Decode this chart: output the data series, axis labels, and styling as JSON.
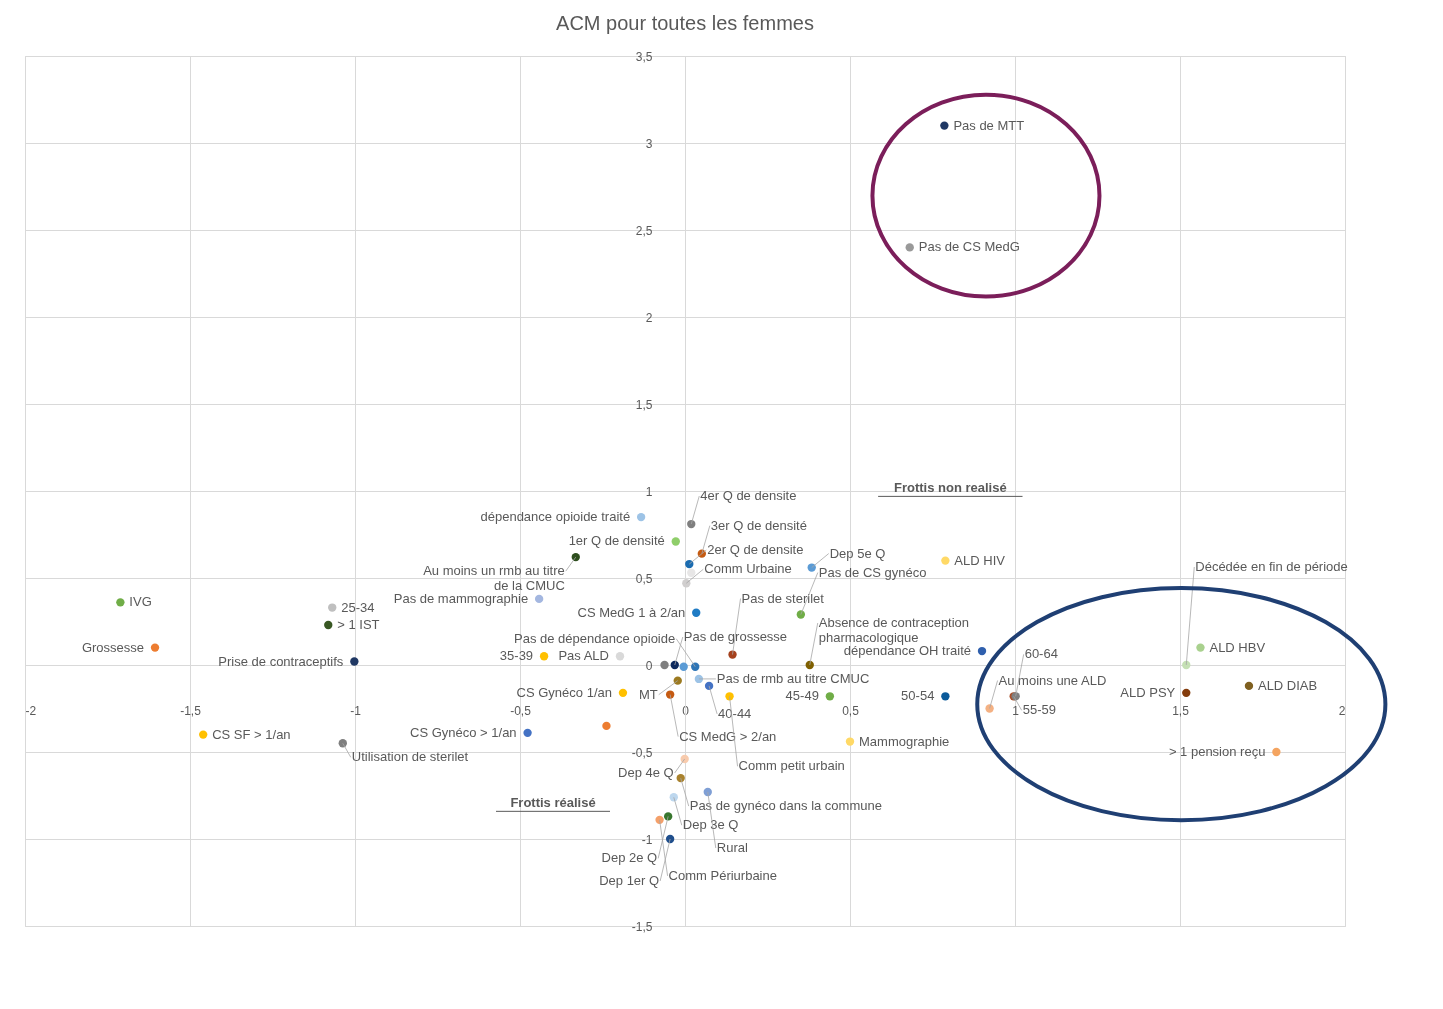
{
  "chart_data": {
    "type": "scatter",
    "title": "ACM pour toutes les femmes",
    "x": [
      0.786,
      0.681,
      -0.133,
      0.019,
      -0.028,
      0.051,
      -0.331,
      0.013,
      0.019,
      0.004,
      0.384,
      0.789,
      -0.442,
      0.034,
      0.351,
      -1.711,
      -1.069,
      -1.081,
      -1.606,
      -1.002,
      -0.427,
      -0.197,
      0.144,
      0.378,
      0.9,
      1.562,
      1.519,
      1.709,
      1.519,
      0.789,
      0.996,
      1.002,
      0.923,
      1.792,
      0.5,
      0.439,
      0.135,
      -0.045,
      -0.188,
      0.073,
      -0.022,
      0.042,
      -0.062,
      -0.031,
      -0.004,
      0.031,
      -1.46,
      -1.037,
      -0.477,
      -0.238,
      -0.001,
      -0.013,
      0.069,
      -0.034,
      -0.051,
      -0.077,
      -0.045
    ],
    "values": [
      3.1,
      2.4,
      0.85,
      0.81,
      0.71,
      0.64,
      0.62,
      0.58,
      0.53,
      0.47,
      0.56,
      0.6,
      0.38,
      0.3,
      0.29,
      0.36,
      0.33,
      0.23,
      0.1,
      0.02,
      0.05,
      0.05,
      0.06,
      0.0,
      0.08,
      0.1,
      0.0,
      -0.12,
      -0.16,
      -0.18,
      -0.18,
      -0.18,
      -0.25,
      -0.5,
      -0.44,
      -0.18,
      -0.18,
      -0.17,
      -0.16,
      -0.12,
      -0.09,
      -0.08,
      0.0,
      0.0,
      -0.01,
      -0.01,
      -0.4,
      -0.45,
      -0.39,
      -0.35,
      -0.54,
      -0.65,
      -0.73,
      -0.76,
      -0.87,
      -0.89,
      -1.0
    ],
    "colors": [
      "#1f3864",
      "#999999",
      "#9dc3e6",
      "#7f7f7f",
      "#8fce6a",
      "#c55a11",
      "#2e4e1e",
      "#1a6bb0",
      "#e7e6e6",
      "#d0cece",
      "#5b9bd5",
      "#ffd966",
      "#a4b7e0",
      "#1f7bc4",
      "#70ad47",
      "#70ad47",
      "#bfbfbf",
      "#385723",
      "#ed7d31",
      "#203864",
      "#ffc000",
      "#d9d9d9",
      "#a5411d",
      "#7f6000",
      "#2f5fad",
      "#a9d18e",
      "#c5e0b4",
      "#7f6020",
      "#843c0c",
      "#0b5a9a",
      "#a9502a",
      "#7f7f7f",
      "#f4b183",
      "#f4a460",
      "#ffd966",
      "#70ad47",
      "#ffc000",
      "#c55a11",
      "#ffc000",
      "#4472c4",
      "#9c7a20",
      "#9dc3e6",
      "#7f7f7f",
      "#0e2a5e",
      "#5b9bd5",
      "#2e75b6",
      "#ffc000",
      "#7f7f7f",
      "#4472c4",
      "#ed7d31",
      "#f8cbad",
      "#a9822e",
      "#7f9fd5",
      "#bdd7ee",
      "#38762e",
      "#f4a06a",
      "#1f4e8c"
    ],
    "annotations": [
      "Frottis non realisé",
      "Frottis réalisé",
      {
        "text": "Pas de MTT",
        "x": 0.786,
        "y": 3.1
      },
      {
        "text": "Pas de CS MedG",
        "x": 0.681,
        "y": 2.4
      },
      {
        "text": "dépendance opioide traité",
        "x": -0.133,
        "y": 0.85
      },
      {
        "text": "4er Q de densite",
        "x": 0.019,
        "y": 0.81
      },
      {
        "text": "1er Q de densité",
        "x": -0.028,
        "y": 0.71
      },
      {
        "text": "3er Q de densité",
        "x": 0.051,
        "y": 0.64
      },
      {
        "text": "Au moins un rmb au titre de la CMUC",
        "x": -0.331,
        "y": 0.62
      },
      {
        "text": "2er Q de densite",
        "x": 0.013,
        "y": 0.58
      },
      {
        "text": "Comm Urbaine",
        "x": 0.004,
        "y": 0.47
      },
      {
        "text": "Dep 5e Q",
        "x": 0.384,
        "y": 0.56
      },
      {
        "text": "ALD HIV",
        "x": 0.789,
        "y": 0.6
      },
      {
        "text": "Pas de mammographie",
        "x": -0.442,
        "y": 0.38
      },
      {
        "text": "CS MedG 1 à 2/an",
        "x": 0.034,
        "y": 0.3
      },
      {
        "text": "Pas de CS gynéco",
        "x": 0.351,
        "y": 0.29
      },
      {
        "text": "IVG",
        "x": -1.711,
        "y": 0.36
      },
      {
        "text": "25-34",
        "x": -1.069,
        "y": 0.33
      },
      {
        "text": "> 1 IST",
        "x": -1.081,
        "y": 0.23
      },
      {
        "text": "Grossesse",
        "x": -1.606,
        "y": 0.1
      },
      {
        "text": "Prise de contraceptifs",
        "x": -1.002,
        "y": 0.02
      },
      {
        "text": "35-39",
        "x": -0.427,
        "y": 0.05
      },
      {
        "text": "Pas ALD",
        "x": -0.197,
        "y": 0.05
      },
      {
        "text": "Pas de sterilet",
        "x": 0.144,
        "y": 0.06
      },
      {
        "text": "Absence de contraception pharmacologique",
        "x": 0.378,
        "y": 0.0
      },
      {
        "text": "dépendance OH traité",
        "x": 0.9,
        "y": 0.08
      },
      {
        "text": "ALD HBV",
        "x": 1.562,
        "y": 0.1
      },
      {
        "text": "Décédée en fin de période",
        "x": 1.519,
        "y": 0.0
      },
      {
        "text": "ALD DIAB",
        "x": 1.709,
        "y": -0.12
      },
      {
        "text": "ALD PSY",
        "x": 1.519,
        "y": -0.16
      },
      {
        "text": "50-54",
        "x": 0.789,
        "y": -0.18
      },
      {
        "text": "55-59",
        "x": 0.996,
        "y": -0.18
      },
      {
        "text": "60-64",
        "x": 1.002,
        "y": -0.18
      },
      {
        "text": "Au moins une ALD",
        "x": 0.923,
        "y": -0.25
      },
      {
        "text": "> 1 pension reçu",
        "x": 1.792,
        "y": -0.5
      },
      {
        "text": "Mammographie",
        "x": 0.5,
        "y": -0.44
      },
      {
        "text": "45-49",
        "x": 0.439,
        "y": -0.18
      },
      {
        "text": "Comm petit urbain",
        "x": 0.135,
        "y": -0.18
      },
      {
        "text": "CS MedG > 2/an",
        "x": -0.045,
        "y": -0.17
      },
      {
        "text": "CS Gynéco 1/an",
        "x": -0.188,
        "y": -0.16
      },
      {
        "text": "40-44",
        "x": 0.073,
        "y": -0.12
      },
      {
        "text": "MT",
        "x": -0.022,
        "y": -0.09
      },
      {
        "text": "Pas de rmb au titre CMUC",
        "x": 0.042,
        "y": -0.08
      },
      {
        "text": "Pas de grossesse",
        "x": -0.031,
        "y": 0.0
      },
      {
        "text": "Pas de dépendance opioide",
        "x": 0.031,
        "y": -0.01
      },
      {
        "text": "CS SF > 1/an",
        "x": -1.46,
        "y": -0.4
      },
      {
        "text": "Utilisation de sterilet",
        "x": -1.037,
        "y": -0.45
      },
      {
        "text": "CS Gynéco > 1/an",
        "x": -0.477,
        "y": -0.39
      },
      {
        "text": "Dep 4e Q",
        "x": -0.001,
        "y": -0.54
      },
      {
        "text": "Pas de gynéco dans la commune",
        "x": -0.013,
        "y": -0.65
      },
      {
        "text": "Rural",
        "x": 0.069,
        "y": -0.73
      },
      {
        "text": "Dep 3e Q",
        "x": -0.034,
        "y": -0.76
      },
      {
        "text": "Dep 2e Q",
        "x": -0.051,
        "y": -0.87
      },
      {
        "text": "Comm Périurbaine",
        "x": -0.077,
        "y": -0.89
      },
      {
        "text": "Dep 1er Q",
        "x": -0.045,
        "y": -1.0
      }
    ],
    "xlim": [
      -2,
      2
    ],
    "xticks": [
      -2,
      {
        "value": -1.5,
        "label": "-1,5"
      },
      -1,
      {
        "value": -0.5,
        "label": "-0,5"
      },
      0,
      {
        "value": 0.5,
        "label": "0,5"
      },
      1,
      {
        "value": 1.5,
        "label": "1,5"
      },
      2
    ],
    "ylim": [
      -1.5,
      3.5
    ],
    "yticks": [
      {
        "value": -1.5,
        "label": "-1,5"
      },
      -1,
      {
        "value": -0.5,
        "label": "-0,5"
      },
      0,
      {
        "value": 0.5,
        "label": "0,5"
      },
      1,
      {
        "value": 1.5,
        "label": "1,5"
      },
      2,
      {
        "value": 2.5,
        "label": "2,5"
      },
      3,
      {
        "value": 3.5,
        "label": "3,5"
      }
    ],
    "grid": true,
    "marker": "circle"
  }
}
